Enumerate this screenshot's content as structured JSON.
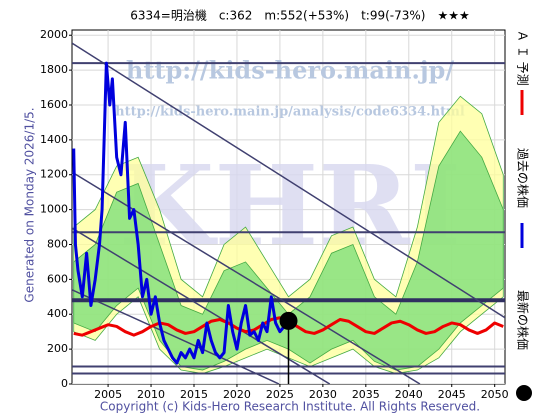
{
  "chart_data": {
    "type": "line",
    "title": "6334=明治機　c:362　m:552(+53%)　t:99(-73%)　★★★",
    "side_label": "Generated on Monday 2026/1/5.",
    "copyright": "Copyright (c) Kids-Hero Research Institute. All Rights Reserved.",
    "watermarks": [
      "http://kids-hero.main.jp/",
      "http://kids-hero.main.jp/analysis/code6334.html",
      "KHRI"
    ],
    "xlim": [
      2000.8,
      2051.2
    ],
    "ylim": [
      0,
      2030
    ],
    "xticks": [
      2005,
      2010,
      2015,
      2020,
      2025,
      2030,
      2035,
      2040,
      2045,
      2050
    ],
    "yticks": [
      0,
      200,
      400,
      600,
      800,
      1000,
      1200,
      1400,
      1600,
      1800,
      2000
    ],
    "grid": true,
    "bands": [
      {
        "color": "#ffff99",
        "x": [
          2001,
          2003.5,
          2006,
          2008.5,
          2011,
          2013.5,
          2016,
          2018.5,
          2021,
          2023.5,
          2026,
          2028.5,
          2031,
          2033.5,
          2036,
          2038.5,
          2041,
          2043.5,
          2046,
          2048.5,
          2051
        ],
        "upper": [
          900,
          1000,
          1250,
          1300,
          1000,
          600,
          500,
          800,
          900,
          700,
          500,
          600,
          850,
          900,
          600,
          500,
          900,
          1500,
          1650,
          1550,
          1200
        ],
        "lower": [
          300,
          250,
          400,
          500,
          200,
          80,
          60,
          100,
          150,
          200,
          150,
          100,
          150,
          200,
          100,
          60,
          80,
          150,
          300,
          400,
          500
        ]
      },
      {
        "color": "#77dd77",
        "x": [
          2001,
          2003.5,
          2006,
          2008.5,
          2011,
          2013.5,
          2016,
          2018.5,
          2021,
          2023.5,
          2026,
          2028.5,
          2031,
          2033.5,
          2036,
          2038.5,
          2041,
          2043.5,
          2046,
          2048.5,
          2051
        ],
        "upper": [
          700,
          800,
          1100,
          1150,
          800,
          450,
          400,
          650,
          700,
          550,
          400,
          500,
          750,
          800,
          500,
          400,
          700,
          1250,
          1450,
          1300,
          1000
        ],
        "lower": [
          350,
          300,
          450,
          550,
          250,
          100,
          80,
          130,
          200,
          250,
          200,
          120,
          200,
          250,
          130,
          80,
          100,
          200,
          350,
          450,
          550
        ]
      }
    ],
    "hlines": [
      {
        "value": 1840,
        "color": "#404070",
        "width": 2
      },
      {
        "value": 870,
        "color": "#404070",
        "width": 2
      },
      {
        "value": 480,
        "color": "#303060",
        "width": 4
      },
      {
        "value": 100,
        "color": "#404070",
        "width": 2
      },
      {
        "value": 60,
        "color": "#404070",
        "width": 2
      }
    ],
    "trend_lines": [
      {
        "x": [
          2000.8,
          2051.2
        ],
        "values": [
          1955,
          380
        ]
      },
      {
        "x": [
          2000.8,
          2041.3
        ],
        "values": [
          1215,
          0
        ]
      },
      {
        "x": [
          2000.8,
          2030.8
        ],
        "values": [
          894,
          0
        ]
      },
      {
        "x": [
          2000.8,
          2024.9
        ],
        "values": [
          540,
          0
        ]
      }
    ],
    "series": [
      {
        "name": "Ａ Ｉ 予測",
        "color": "#ee0000",
        "x": [
          2001,
          2002,
          2003,
          2004,
          2005,
          2006,
          2007,
          2008,
          2009,
          2010,
          2011,
          2012,
          2013,
          2014,
          2015,
          2016,
          2017,
          2018,
          2019,
          2020,
          2021,
          2022,
          2023,
          2024,
          2025,
          2026,
          2027,
          2028,
          2029,
          2030,
          2031,
          2032,
          2033,
          2034,
          2035,
          2036,
          2037,
          2038,
          2039,
          2040,
          2041,
          2042,
          2043,
          2044,
          2045,
          2046,
          2047,
          2048,
          2049,
          2050,
          2051
        ],
        "values": [
          290,
          280,
          300,
          320,
          340,
          330,
          300,
          280,
          300,
          330,
          350,
          340,
          310,
          290,
          300,
          330,
          360,
          370,
          350,
          320,
          300,
          310,
          340,
          370,
          380,
          360,
          330,
          300,
          290,
          310,
          340,
          370,
          360,
          330,
          300,
          290,
          320,
          350,
          360,
          340,
          310,
          290,
          300,
          330,
          350,
          340,
          310,
          290,
          310,
          350,
          330
        ]
      },
      {
        "name": "過去の株価",
        "color": "#0000dd",
        "x": [
          2001,
          2001.2,
          2001.5,
          2002,
          2002.5,
          2003,
          2003.5,
          2004,
          2004.3,
          2004.6,
          2004.8,
          2005.2,
          2005.5,
          2006,
          2006.5,
          2007,
          2007.5,
          2008,
          2008.5,
          2009,
          2009.5,
          2010,
          2010.5,
          2011,
          2011.5,
          2012,
          2012.5,
          2013,
          2013.5,
          2014,
          2014.5,
          2015,
          2015.5,
          2016,
          2016.5,
          2017,
          2017.5,
          2018,
          2018.5,
          2019,
          2019.5,
          2020,
          2020.5,
          2021,
          2021.5,
          2022,
          2022.5,
          2023,
          2023.5,
          2024,
          2024.5,
          2025,
          2025.5
        ],
        "values": [
          1350,
          800,
          650,
          500,
          750,
          450,
          600,
          800,
          1000,
          1500,
          1840,
          1600,
          1750,
          1300,
          1200,
          1500,
          950,
          1000,
          800,
          500,
          600,
          400,
          500,
          350,
          250,
          200,
          150,
          120,
          180,
          150,
          200,
          150,
          250,
          180,
          350,
          250,
          180,
          150,
          180,
          450,
          300,
          200,
          350,
          450,
          280,
          300,
          250,
          350,
          300,
          500,
          350,
          300,
          330
        ]
      },
      {
        "name": "最新の株価",
        "color": "#000000"
      }
    ],
    "latest": {
      "x": 2026.0,
      "value": 362
    }
  }
}
